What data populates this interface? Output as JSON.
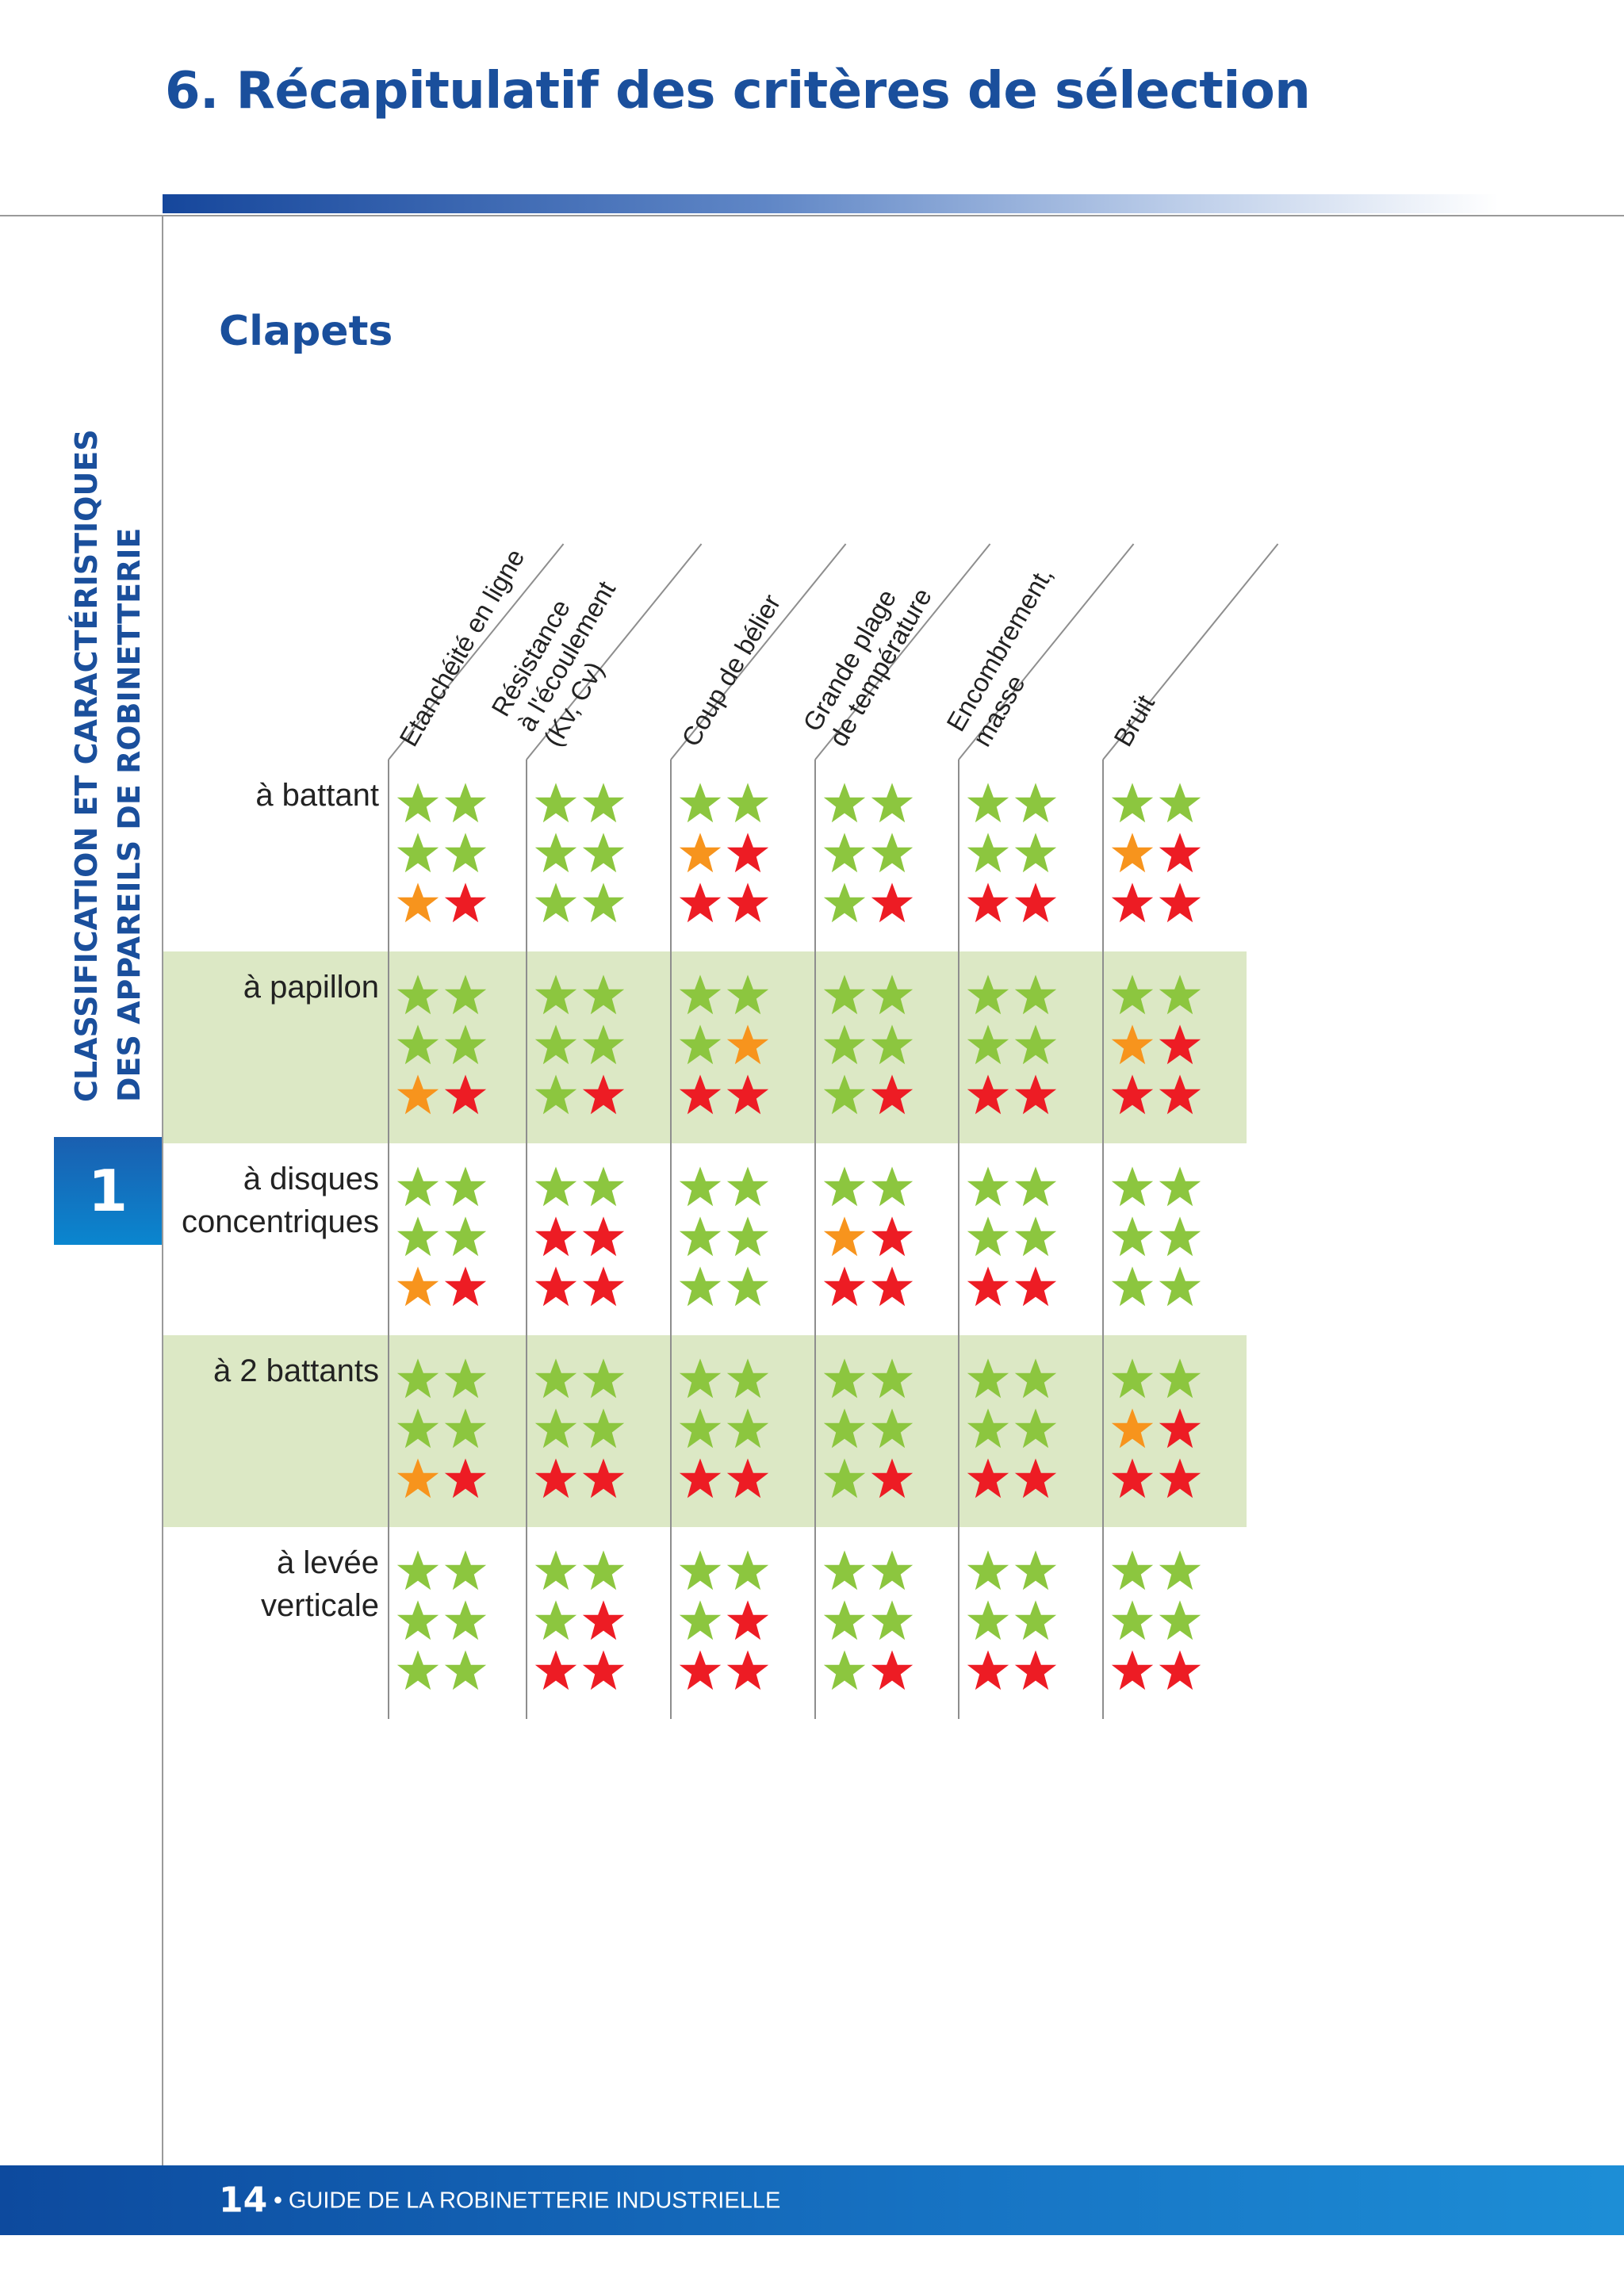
{
  "page_title": "6. Récapitulatif des critères de sélection",
  "side_heading": {
    "line1": "CLASSIFICATION ET CARACTÉRISTIQUES",
    "line2": "DES APPAREILS DE ROBINETTERIE"
  },
  "chapter_number": "1",
  "section_title": "Clapets",
  "columns": [
    {
      "lines": [
        "Etanchéité en ligne"
      ]
    },
    {
      "lines": [
        "Résistance",
        "à l'écoulement",
        "(Kv, Cv)"
      ]
    },
    {
      "lines": [
        "Coup de bélier"
      ]
    },
    {
      "lines": [
        "Grande plage",
        "de température"
      ]
    },
    {
      "lines": [
        "Encombrement,",
        "masse"
      ]
    },
    {
      "lines": [
        "Bruit"
      ]
    }
  ],
  "rows": [
    {
      "lines": [
        "à battant"
      ],
      "shaded": false
    },
    {
      "lines": [
        "à papillon"
      ],
      "shaded": true
    },
    {
      "lines": [
        "à disques",
        "concentriques"
      ],
      "shaded": false
    },
    {
      "lines": [
        "à 2 battants"
      ],
      "shaded": true
    },
    {
      "lines": [
        "à levée",
        "verticale"
      ],
      "shaded": false
    }
  ],
  "star_colors": {
    "G": "#8cc63f",
    "O": "#f7941d",
    "R": "#ed1c24"
  },
  "ratings": [
    [
      [
        "GG",
        "GG",
        "OR"
      ],
      [
        "GG",
        "GG",
        "GG"
      ],
      [
        "GG",
        "OR",
        "RR"
      ],
      [
        "GG",
        "GG",
        "GR"
      ],
      [
        "GG",
        "GG",
        "RR"
      ],
      [
        "GG",
        "OR",
        "RR"
      ]
    ],
    [
      [
        "GG",
        "GG",
        "OR"
      ],
      [
        "GG",
        "GG",
        "GR"
      ],
      [
        "GG",
        "GO",
        "RR"
      ],
      [
        "GG",
        "GG",
        "GR"
      ],
      [
        "GG",
        "GG",
        "RR"
      ],
      [
        "GG",
        "OR",
        "RR"
      ]
    ],
    [
      [
        "GG",
        "GG",
        "OR"
      ],
      [
        "GG",
        "RR",
        "RR"
      ],
      [
        "GG",
        "GG",
        "GG"
      ],
      [
        "GG",
        "OR",
        "RR"
      ],
      [
        "GG",
        "GG",
        "RR"
      ],
      [
        "GG",
        "GG",
        "GG"
      ]
    ],
    [
      [
        "GG",
        "GG",
        "OR"
      ],
      [
        "GG",
        "GG",
        "RR"
      ],
      [
        "GG",
        "GG",
        "RR"
      ],
      [
        "GG",
        "GG",
        "GR"
      ],
      [
        "GG",
        "GG",
        "RR"
      ],
      [
        "GG",
        "OR",
        "RR"
      ]
    ],
    [
      [
        "GG",
        "GG",
        "GG"
      ],
      [
        "GG",
        "GR",
        "RR"
      ],
      [
        "GG",
        "GR",
        "RR"
      ],
      [
        "GG",
        "GG",
        "GR"
      ],
      [
        "GG",
        "GG",
        "RR"
      ],
      [
        "GG",
        "GG",
        "RR"
      ]
    ]
  ],
  "footer": {
    "page_number": "14",
    "separator": "•",
    "guide_title": "GUIDE DE LA ROBINETTERIE INDUSTRIELLE"
  }
}
